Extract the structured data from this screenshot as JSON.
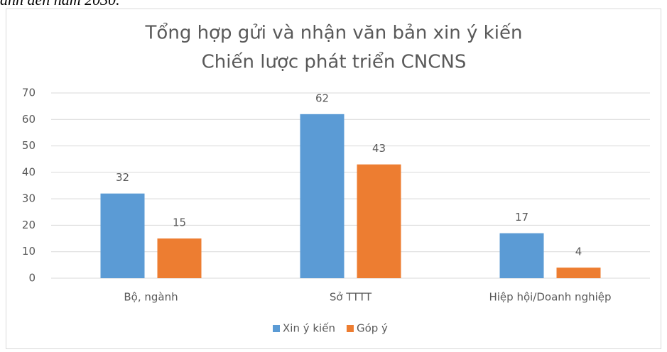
{
  "page_text": "anh đến năm 2030.",
  "chart_data": {
    "type": "bar",
    "title": "Tổng hợp gửi và nhận văn bản xin ý kiến",
    "subtitle": "Chiến lược phát triển CNCNS",
    "categories": [
      "Bộ, ngành",
      "Sở TTTT",
      "Hiệp hội/Doanh nghiệp"
    ],
    "series": [
      {
        "name": "Xin ý kiến",
        "color": "#5b9bd5",
        "values": [
          32,
          62,
          17
        ]
      },
      {
        "name": "Góp ý",
        "color": "#ed7d31",
        "values": [
          15,
          43,
          4
        ]
      }
    ],
    "ylim": [
      0,
      70
    ],
    "yticks": [
      0,
      10,
      20,
      30,
      40,
      50,
      60,
      70
    ],
    "grid": true,
    "legend": "bottom"
  }
}
